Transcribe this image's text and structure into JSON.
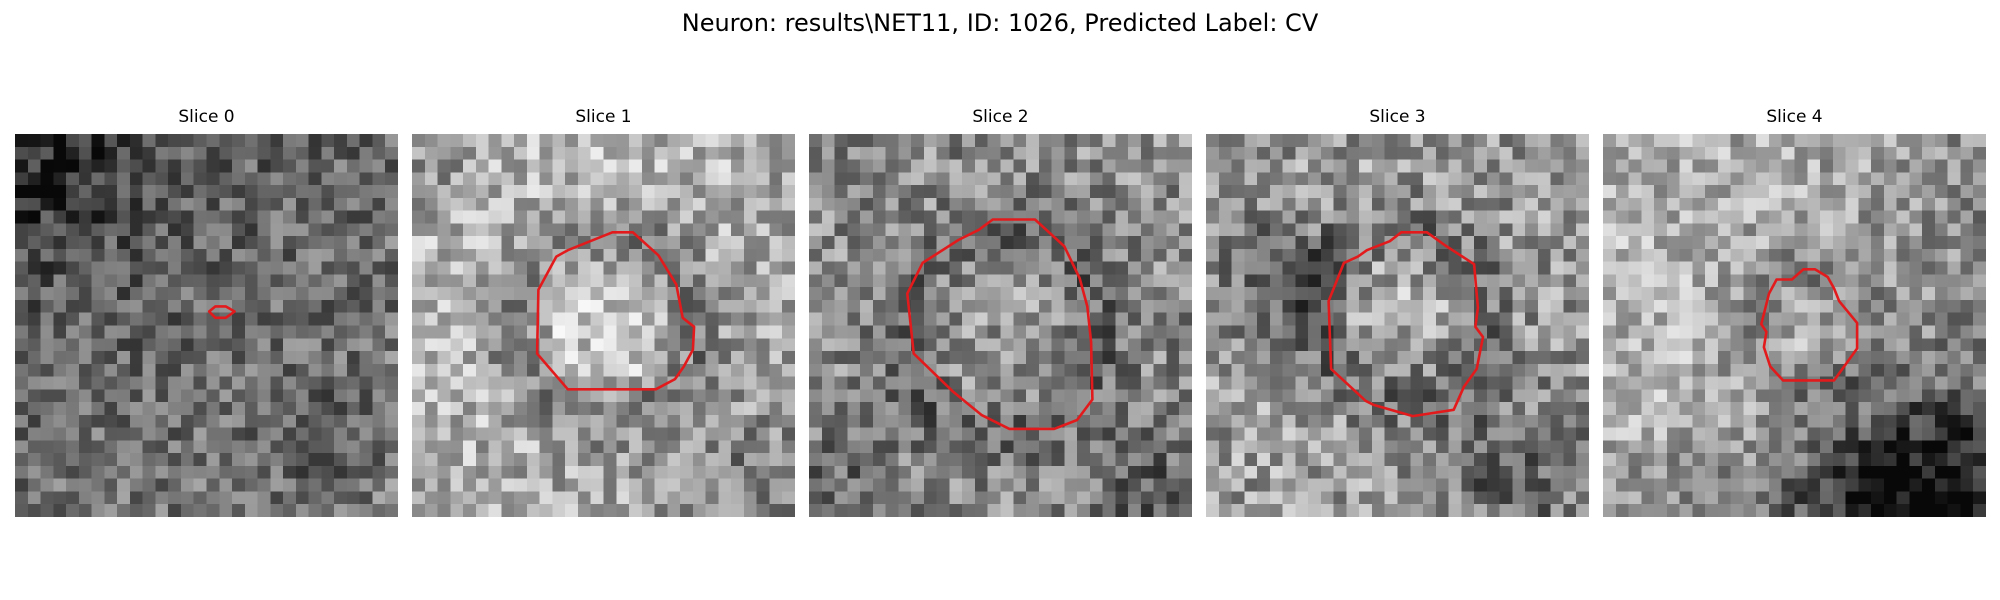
{
  "figure": {
    "title": "Neuron: results\\NET11, ID: 1026, Predicted Label: CV"
  },
  "contour_color": "#e31a1c",
  "panels": [
    {
      "title": "Slice 0",
      "image_kind": "grayscale-noise-crop",
      "contour": "tiny-red-loop"
    },
    {
      "title": "Slice 1",
      "image_kind": "grayscale-noise-crop",
      "contour": "large-red-outline"
    },
    {
      "title": "Slice 2",
      "image_kind": "grayscale-noise-crop",
      "contour": "large-red-outline"
    },
    {
      "title": "Slice 3",
      "image_kind": "grayscale-noise-crop",
      "contour": "large-red-outline"
    },
    {
      "title": "Slice 4",
      "image_kind": "grayscale-noise-crop",
      "contour": "small-red-outline"
    }
  ]
}
